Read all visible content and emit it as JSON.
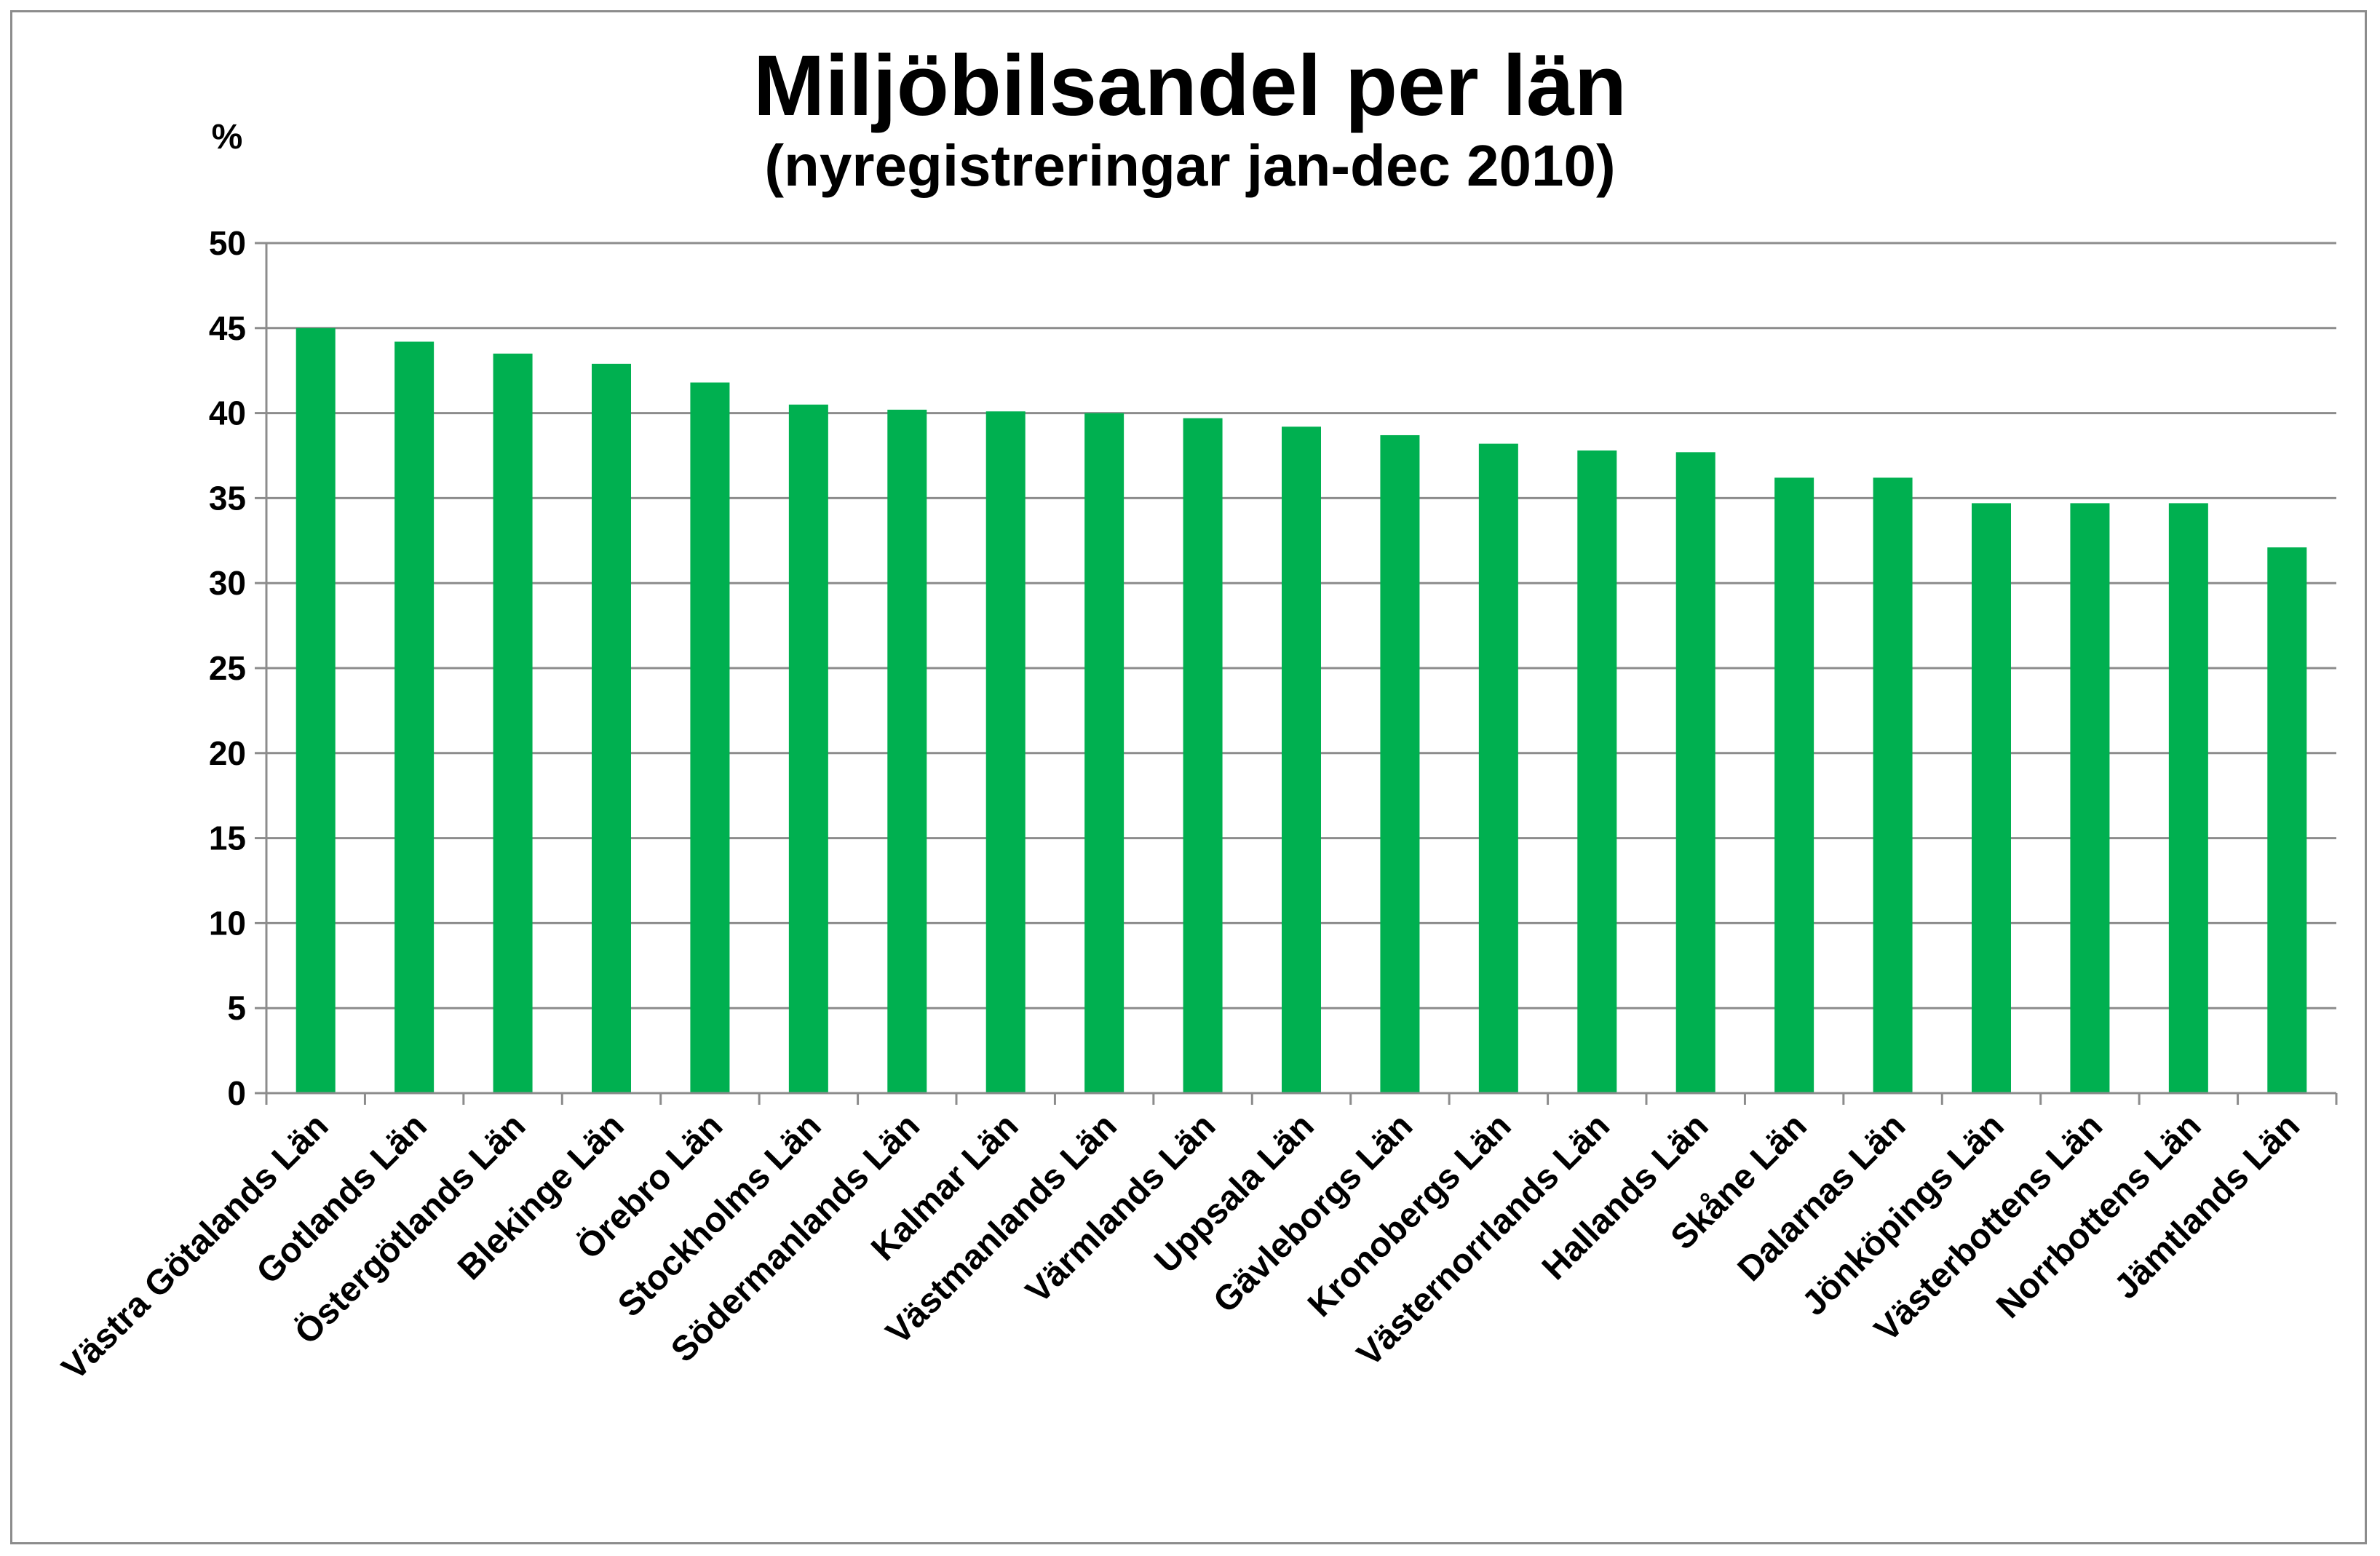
{
  "chart_data": {
    "type": "bar",
    "title": "Miljöbilsandel per län",
    "subtitle": "(nyregistreringar jan-dec 2010)",
    "ylabel": "%",
    "xlabel": "",
    "ylim": [
      0,
      50
    ],
    "yticks": [
      0,
      5,
      10,
      15,
      20,
      25,
      30,
      35,
      40,
      45,
      50
    ],
    "grid": true,
    "legend": "none",
    "bar_color": "#00b050",
    "categories": [
      "Västra Götalands Län",
      "Gotlands Län",
      "Östergötlands Län",
      "Blekinge Län",
      "Örebro Län",
      "Stockholms Län",
      "Södermanlands Län",
      "Kalmar Län",
      "Västmanlands Län",
      "Värmlands Län",
      "Uppsala Län",
      "Gävleborgs Län",
      "Kronobergs Län",
      "Västernorrlands Län",
      "Hallands Län",
      "Skåne Län",
      "Dalarnas Län",
      "Jönköpings Län",
      "Västerbottens Län",
      "Norrbottens Län",
      "Jämtlands Län"
    ],
    "values": [
      45.0,
      44.2,
      43.5,
      42.9,
      41.8,
      40.5,
      40.2,
      40.1,
      40.0,
      39.7,
      39.2,
      38.7,
      38.2,
      37.8,
      37.7,
      36.2,
      36.2,
      34.7,
      34.7,
      34.7,
      32.1
    ]
  }
}
